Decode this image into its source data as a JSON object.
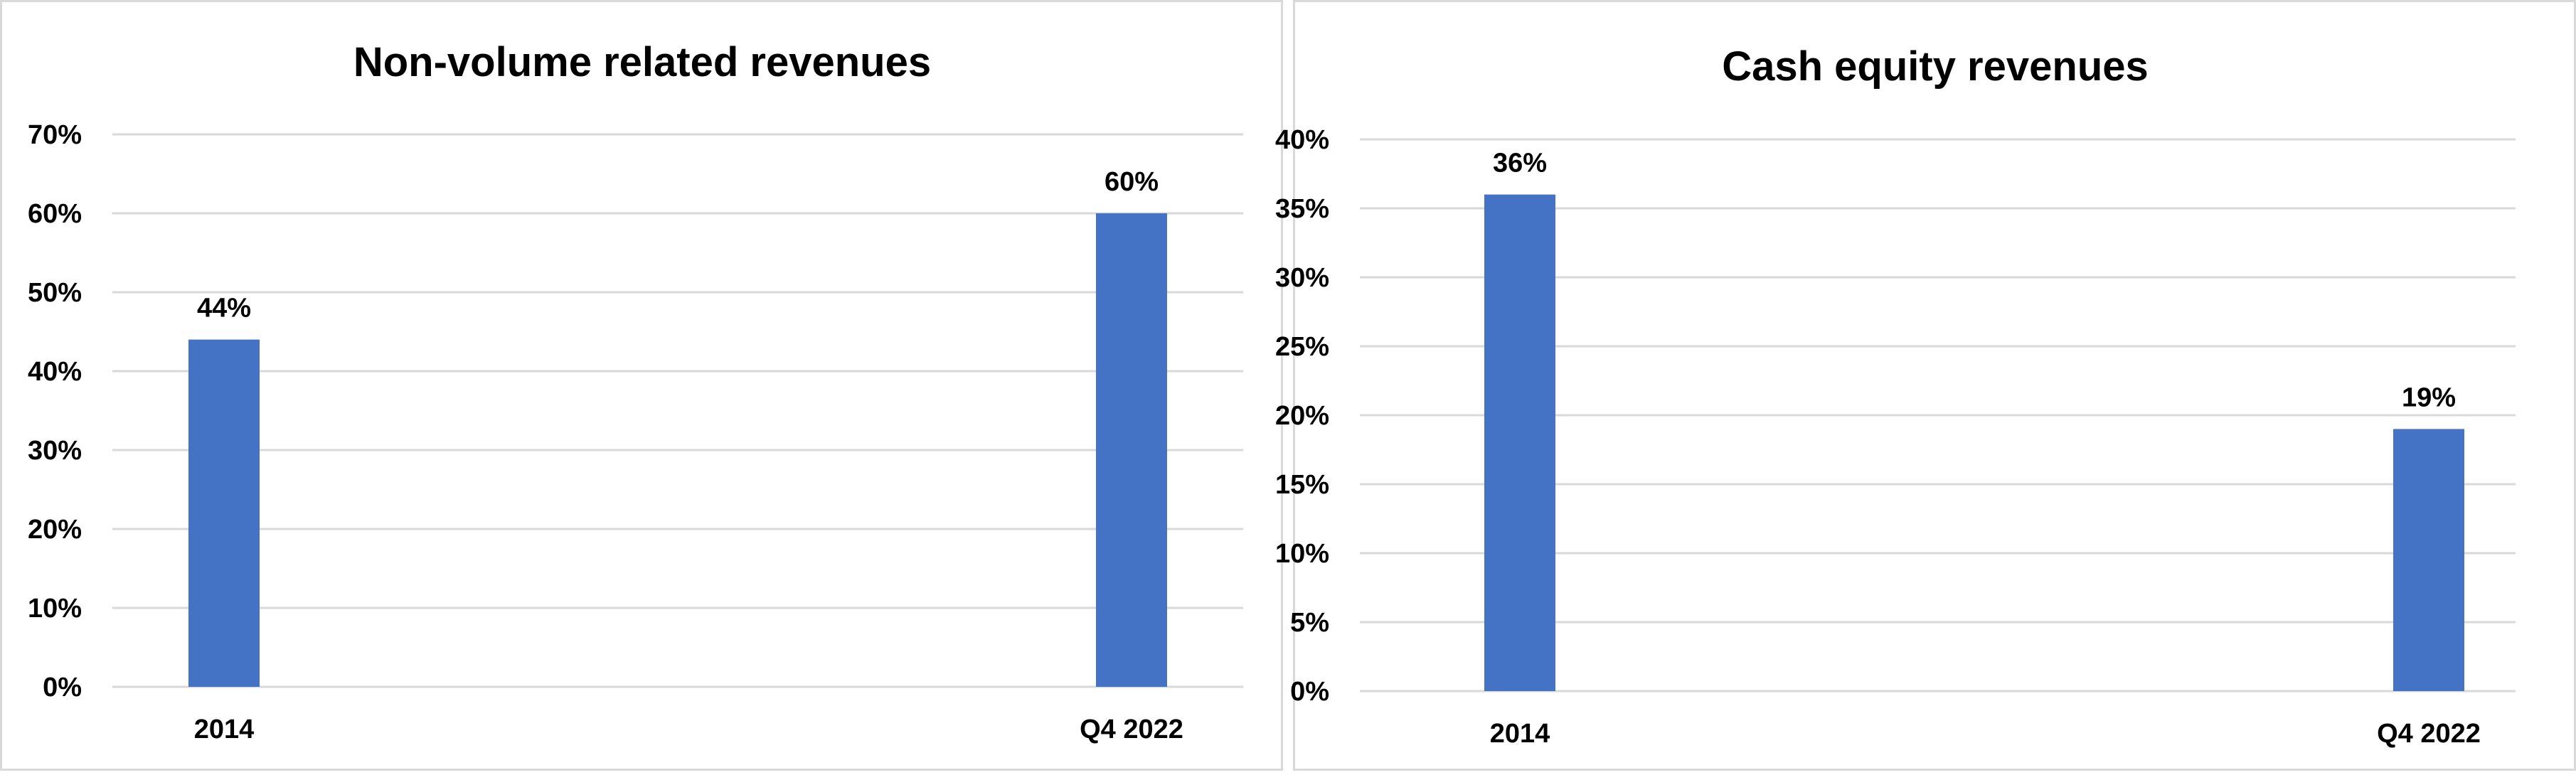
{
  "chart_data": [
    {
      "type": "bar",
      "title": "Non-volume related revenues",
      "categories": [
        "2014",
        "Q4 2022"
      ],
      "values": [
        44,
        60
      ],
      "value_labels": [
        "44%",
        "60%"
      ],
      "ylim": [
        0,
        70
      ],
      "yticks": [
        0,
        10,
        20,
        30,
        40,
        50,
        60,
        70
      ],
      "ytick_labels": [
        "0%",
        "10%",
        "20%",
        "30%",
        "40%",
        "50%",
        "60%",
        "70%"
      ],
      "grid": true,
      "legend": "none",
      "bar_color": "#4472C4"
    },
    {
      "type": "bar",
      "title": "Cash equity revenues",
      "categories": [
        "2014",
        "Q4 2022"
      ],
      "values": [
        36,
        19
      ],
      "value_labels": [
        "36%",
        "19%"
      ],
      "ylim": [
        0,
        40
      ],
      "yticks": [
        0,
        5,
        10,
        15,
        20,
        25,
        30,
        35,
        40
      ],
      "ytick_labels": [
        "0%",
        "5%",
        "10%",
        "15%",
        "20%",
        "25%",
        "30%",
        "35%",
        "40%"
      ],
      "grid": true,
      "legend": "none",
      "bar_color": "#4472C4"
    }
  ]
}
